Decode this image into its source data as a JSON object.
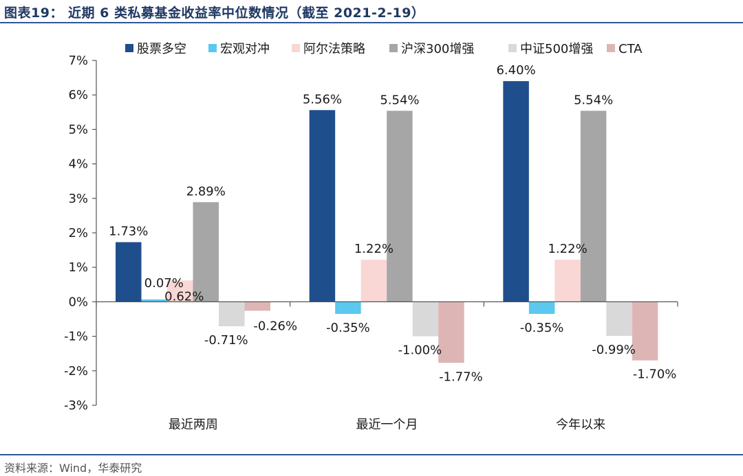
{
  "figure": {
    "title": "图表19： 近期 6 类私募基金收益率中位数情况（截至 2021-2-19）",
    "source": "资料来源：Wind，华泰研究"
  },
  "colors": {
    "rule": "#2f5597",
    "axis": "#555555"
  },
  "chart_data": {
    "type": "bar",
    "title": "",
    "xlabel": "",
    "ylabel": "",
    "ylim": [
      -0.03,
      0.07
    ],
    "yticks": [
      {
        "value": 0.07,
        "label": "7%"
      },
      {
        "value": 0.06,
        "label": "6%"
      },
      {
        "value": 0.05,
        "label": "5%"
      },
      {
        "value": 0.04,
        "label": "4%"
      },
      {
        "value": 0.03,
        "label": "3%"
      },
      {
        "value": 0.02,
        "label": "2%"
      },
      {
        "value": 0.01,
        "label": "1%"
      },
      {
        "value": 0.0,
        "label": "0%"
      },
      {
        "value": -0.01,
        "label": "-1%"
      },
      {
        "value": -0.02,
        "label": "-2%"
      },
      {
        "value": -0.03,
        "label": "-3%"
      }
    ],
    "grid": false,
    "legend_position": "top",
    "categories": [
      "最近两周",
      "最近一个月",
      "今年以来"
    ],
    "series": [
      {
        "name": "股票多空",
        "color": "#1f4e8c",
        "values": [
          0.0173,
          0.0556,
          0.064
        ],
        "labels": [
          "1.73%",
          "5.56%",
          "6.40%"
        ]
      },
      {
        "name": "宏观对冲",
        "color": "#5bc8ef",
        "values": [
          0.0007,
          -0.0035,
          -0.0035
        ],
        "labels": [
          "0.07%",
          "-0.35%",
          "-0.35%"
        ]
      },
      {
        "name": "阿尔法策略",
        "color": "#f8d7d5",
        "values": [
          0.0062,
          0.0122,
          0.0122
        ],
        "labels": [
          "0.62%",
          "1.22%",
          "1.22%"
        ]
      },
      {
        "name": "沪深300增强",
        "color": "#a6a6a6",
        "values": [
          0.0289,
          0.0554,
          0.0554
        ],
        "labels": [
          "2.89%",
          "5.54%",
          "5.54%"
        ]
      },
      {
        "name": "中证500增强",
        "color": "#d9d9d9",
        "values": [
          -0.0071,
          -0.01,
          -0.0099
        ],
        "labels": [
          "-0.71%",
          "-1.00%",
          "-0.99%"
        ]
      },
      {
        "name": "CTA",
        "color": "#deb5b5",
        "values": [
          -0.0026,
          -0.0177,
          -0.017
        ],
        "labels": [
          "-0.26%",
          "-1.77%",
          "-1.70%"
        ]
      }
    ]
  }
}
